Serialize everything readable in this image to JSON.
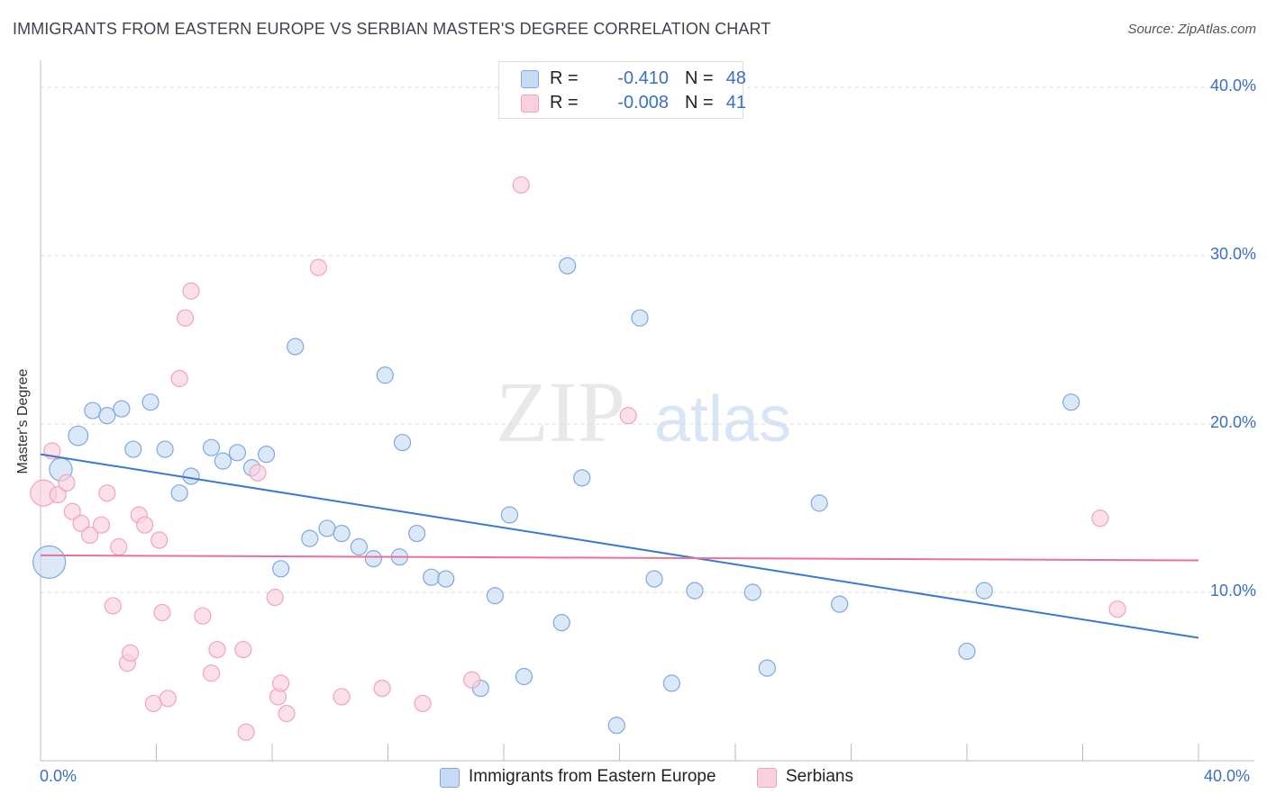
{
  "title": "IMMIGRANTS FROM EASTERN EUROPE VS SERBIAN MASTER'S DEGREE CORRELATION CHART",
  "source": "Source: ZipAtlas.com",
  "watermark": {
    "zip": "ZIP",
    "atlas": "atlas"
  },
  "legend_top": [
    {
      "r_label": "R =",
      "r_value": "-0.410",
      "n_label": "N =",
      "n_value": "48",
      "color": "#a9c8f0"
    },
    {
      "r_label": "R =",
      "r_value": "-0.008",
      "n_label": "N =",
      "n_value": "41",
      "color": "#f6b8cb"
    }
  ],
  "legend_bottom": [
    {
      "label": "Immigrants from Eastern Europe",
      "color": "#a9c8f0"
    },
    {
      "label": "Serbians",
      "color": "#f6b8cb"
    }
  ],
  "chart_data": {
    "type": "scatter",
    "title": "IMMIGRANTS FROM EASTERN EUROPE VS SERBIAN MASTER'S DEGREE CORRELATION CHART",
    "xlabel": "",
    "ylabel": "Master's Degree",
    "xlim": [
      0,
      40
    ],
    "ylim": [
      0,
      40
    ],
    "x_tick_labels": [
      "0.0%",
      "40.0%"
    ],
    "y_ticks": [
      10,
      20,
      30,
      40
    ],
    "y_tick_labels": [
      "10.0%",
      "20.0%",
      "30.0%",
      "40.0%"
    ],
    "grid": true,
    "legend_position": "top-center",
    "series": [
      {
        "name": "Immigrants from Eastern Europe",
        "color": "#3a78d4",
        "fill": "#c7dbf5",
        "stroke": "#7fa8e2",
        "trend": {
          "x": [
            0,
            40
          ],
          "y": [
            18.2,
            7.3
          ]
        },
        "points": [
          {
            "x": 0.3,
            "y": 11.8,
            "s": 2.0
          },
          {
            "x": 0.7,
            "y": 17.3,
            "s": 1.4
          },
          {
            "x": 1.3,
            "y": 19.3,
            "s": 1.2
          },
          {
            "x": 1.8,
            "y": 20.8
          },
          {
            "x": 2.3,
            "y": 20.5
          },
          {
            "x": 2.8,
            "y": 20.9
          },
          {
            "x": 3.2,
            "y": 18.5
          },
          {
            "x": 3.8,
            "y": 21.3
          },
          {
            "x": 4.3,
            "y": 18.5
          },
          {
            "x": 4.8,
            "y": 15.9
          },
          {
            "x": 5.2,
            "y": 16.9
          },
          {
            "x": 5.9,
            "y": 18.6
          },
          {
            "x": 6.3,
            "y": 17.8
          },
          {
            "x": 6.8,
            "y": 18.3
          },
          {
            "x": 7.3,
            "y": 17.4
          },
          {
            "x": 7.8,
            "y": 18.2
          },
          {
            "x": 8.3,
            "y": 11.4
          },
          {
            "x": 8.8,
            "y": 24.6
          },
          {
            "x": 9.3,
            "y": 13.2
          },
          {
            "x": 9.9,
            "y": 13.8
          },
          {
            "x": 10.4,
            "y": 13.5
          },
          {
            "x": 11.0,
            "y": 12.7
          },
          {
            "x": 11.5,
            "y": 12.0
          },
          {
            "x": 11.9,
            "y": 22.9
          },
          {
            "x": 12.4,
            "y": 12.1
          },
          {
            "x": 12.5,
            "y": 18.9
          },
          {
            "x": 13.0,
            "y": 13.5
          },
          {
            "x": 13.5,
            "y": 10.9
          },
          {
            "x": 14.0,
            "y": 10.8
          },
          {
            "x": 15.2,
            "y": 4.3
          },
          {
            "x": 15.7,
            "y": 9.8
          },
          {
            "x": 16.2,
            "y": 14.6
          },
          {
            "x": 16.7,
            "y": 5.0
          },
          {
            "x": 18.2,
            "y": 29.4
          },
          {
            "x": 18.0,
            "y": 8.2
          },
          {
            "x": 18.7,
            "y": 16.8
          },
          {
            "x": 19.9,
            "y": 2.1
          },
          {
            "x": 20.7,
            "y": 26.3
          },
          {
            "x": 21.2,
            "y": 10.8
          },
          {
            "x": 21.8,
            "y": 4.6
          },
          {
            "x": 22.6,
            "y": 10.1
          },
          {
            "x": 24.6,
            "y": 10.0
          },
          {
            "x": 25.1,
            "y": 5.5
          },
          {
            "x": 26.9,
            "y": 15.3
          },
          {
            "x": 27.6,
            "y": 9.3
          },
          {
            "x": 32.0,
            "y": 6.5
          },
          {
            "x": 32.6,
            "y": 10.1
          },
          {
            "x": 35.6,
            "y": 21.3
          }
        ]
      },
      {
        "name": "Serbians",
        "color": "#e8739a",
        "fill": "#fad0dd",
        "stroke": "#f2a3bc",
        "trend": {
          "x": [
            0,
            40
          ],
          "y": [
            12.2,
            11.9
          ]
        },
        "points": [
          {
            "x": 0.1,
            "y": 15.9,
            "s": 1.6
          },
          {
            "x": 0.4,
            "y": 18.4
          },
          {
            "x": 0.6,
            "y": 15.8
          },
          {
            "x": 0.9,
            "y": 16.5
          },
          {
            "x": 1.1,
            "y": 14.8
          },
          {
            "x": 1.4,
            "y": 14.1
          },
          {
            "x": 1.7,
            "y": 13.4
          },
          {
            "x": 2.1,
            "y": 14.0
          },
          {
            "x": 2.3,
            "y": 15.9
          },
          {
            "x": 2.5,
            "y": 9.2
          },
          {
            "x": 2.7,
            "y": 12.7
          },
          {
            "x": 3.0,
            "y": 5.8
          },
          {
            "x": 3.1,
            "y": 6.4
          },
          {
            "x": 3.4,
            "y": 14.6
          },
          {
            "x": 3.6,
            "y": 14.0
          },
          {
            "x": 3.9,
            "y": 3.4
          },
          {
            "x": 4.1,
            "y": 13.1
          },
          {
            "x": 4.2,
            "y": 8.8
          },
          {
            "x": 4.4,
            "y": 3.7
          },
          {
            "x": 4.8,
            "y": 22.7
          },
          {
            "x": 5.0,
            "y": 26.3
          },
          {
            "x": 5.2,
            "y": 27.9
          },
          {
            "x": 5.6,
            "y": 8.6
          },
          {
            "x": 5.9,
            "y": 5.2
          },
          {
            "x": 6.1,
            "y": 6.6
          },
          {
            "x": 7.0,
            "y": 6.6
          },
          {
            "x": 7.1,
            "y": 1.7
          },
          {
            "x": 7.5,
            "y": 17.1
          },
          {
            "x": 8.1,
            "y": 9.7
          },
          {
            "x": 8.2,
            "y": 3.8
          },
          {
            "x": 8.3,
            "y": 4.6
          },
          {
            "x": 8.5,
            "y": 2.8
          },
          {
            "x": 9.6,
            "y": 29.3
          },
          {
            "x": 10.4,
            "y": 3.8
          },
          {
            "x": 11.8,
            "y": 4.3
          },
          {
            "x": 13.2,
            "y": 3.4
          },
          {
            "x": 14.9,
            "y": 4.8
          },
          {
            "x": 16.6,
            "y": 34.2
          },
          {
            "x": 20.3,
            "y": 20.5
          },
          {
            "x": 36.6,
            "y": 14.4
          },
          {
            "x": 37.2,
            "y": 9.0
          }
        ]
      }
    ]
  }
}
